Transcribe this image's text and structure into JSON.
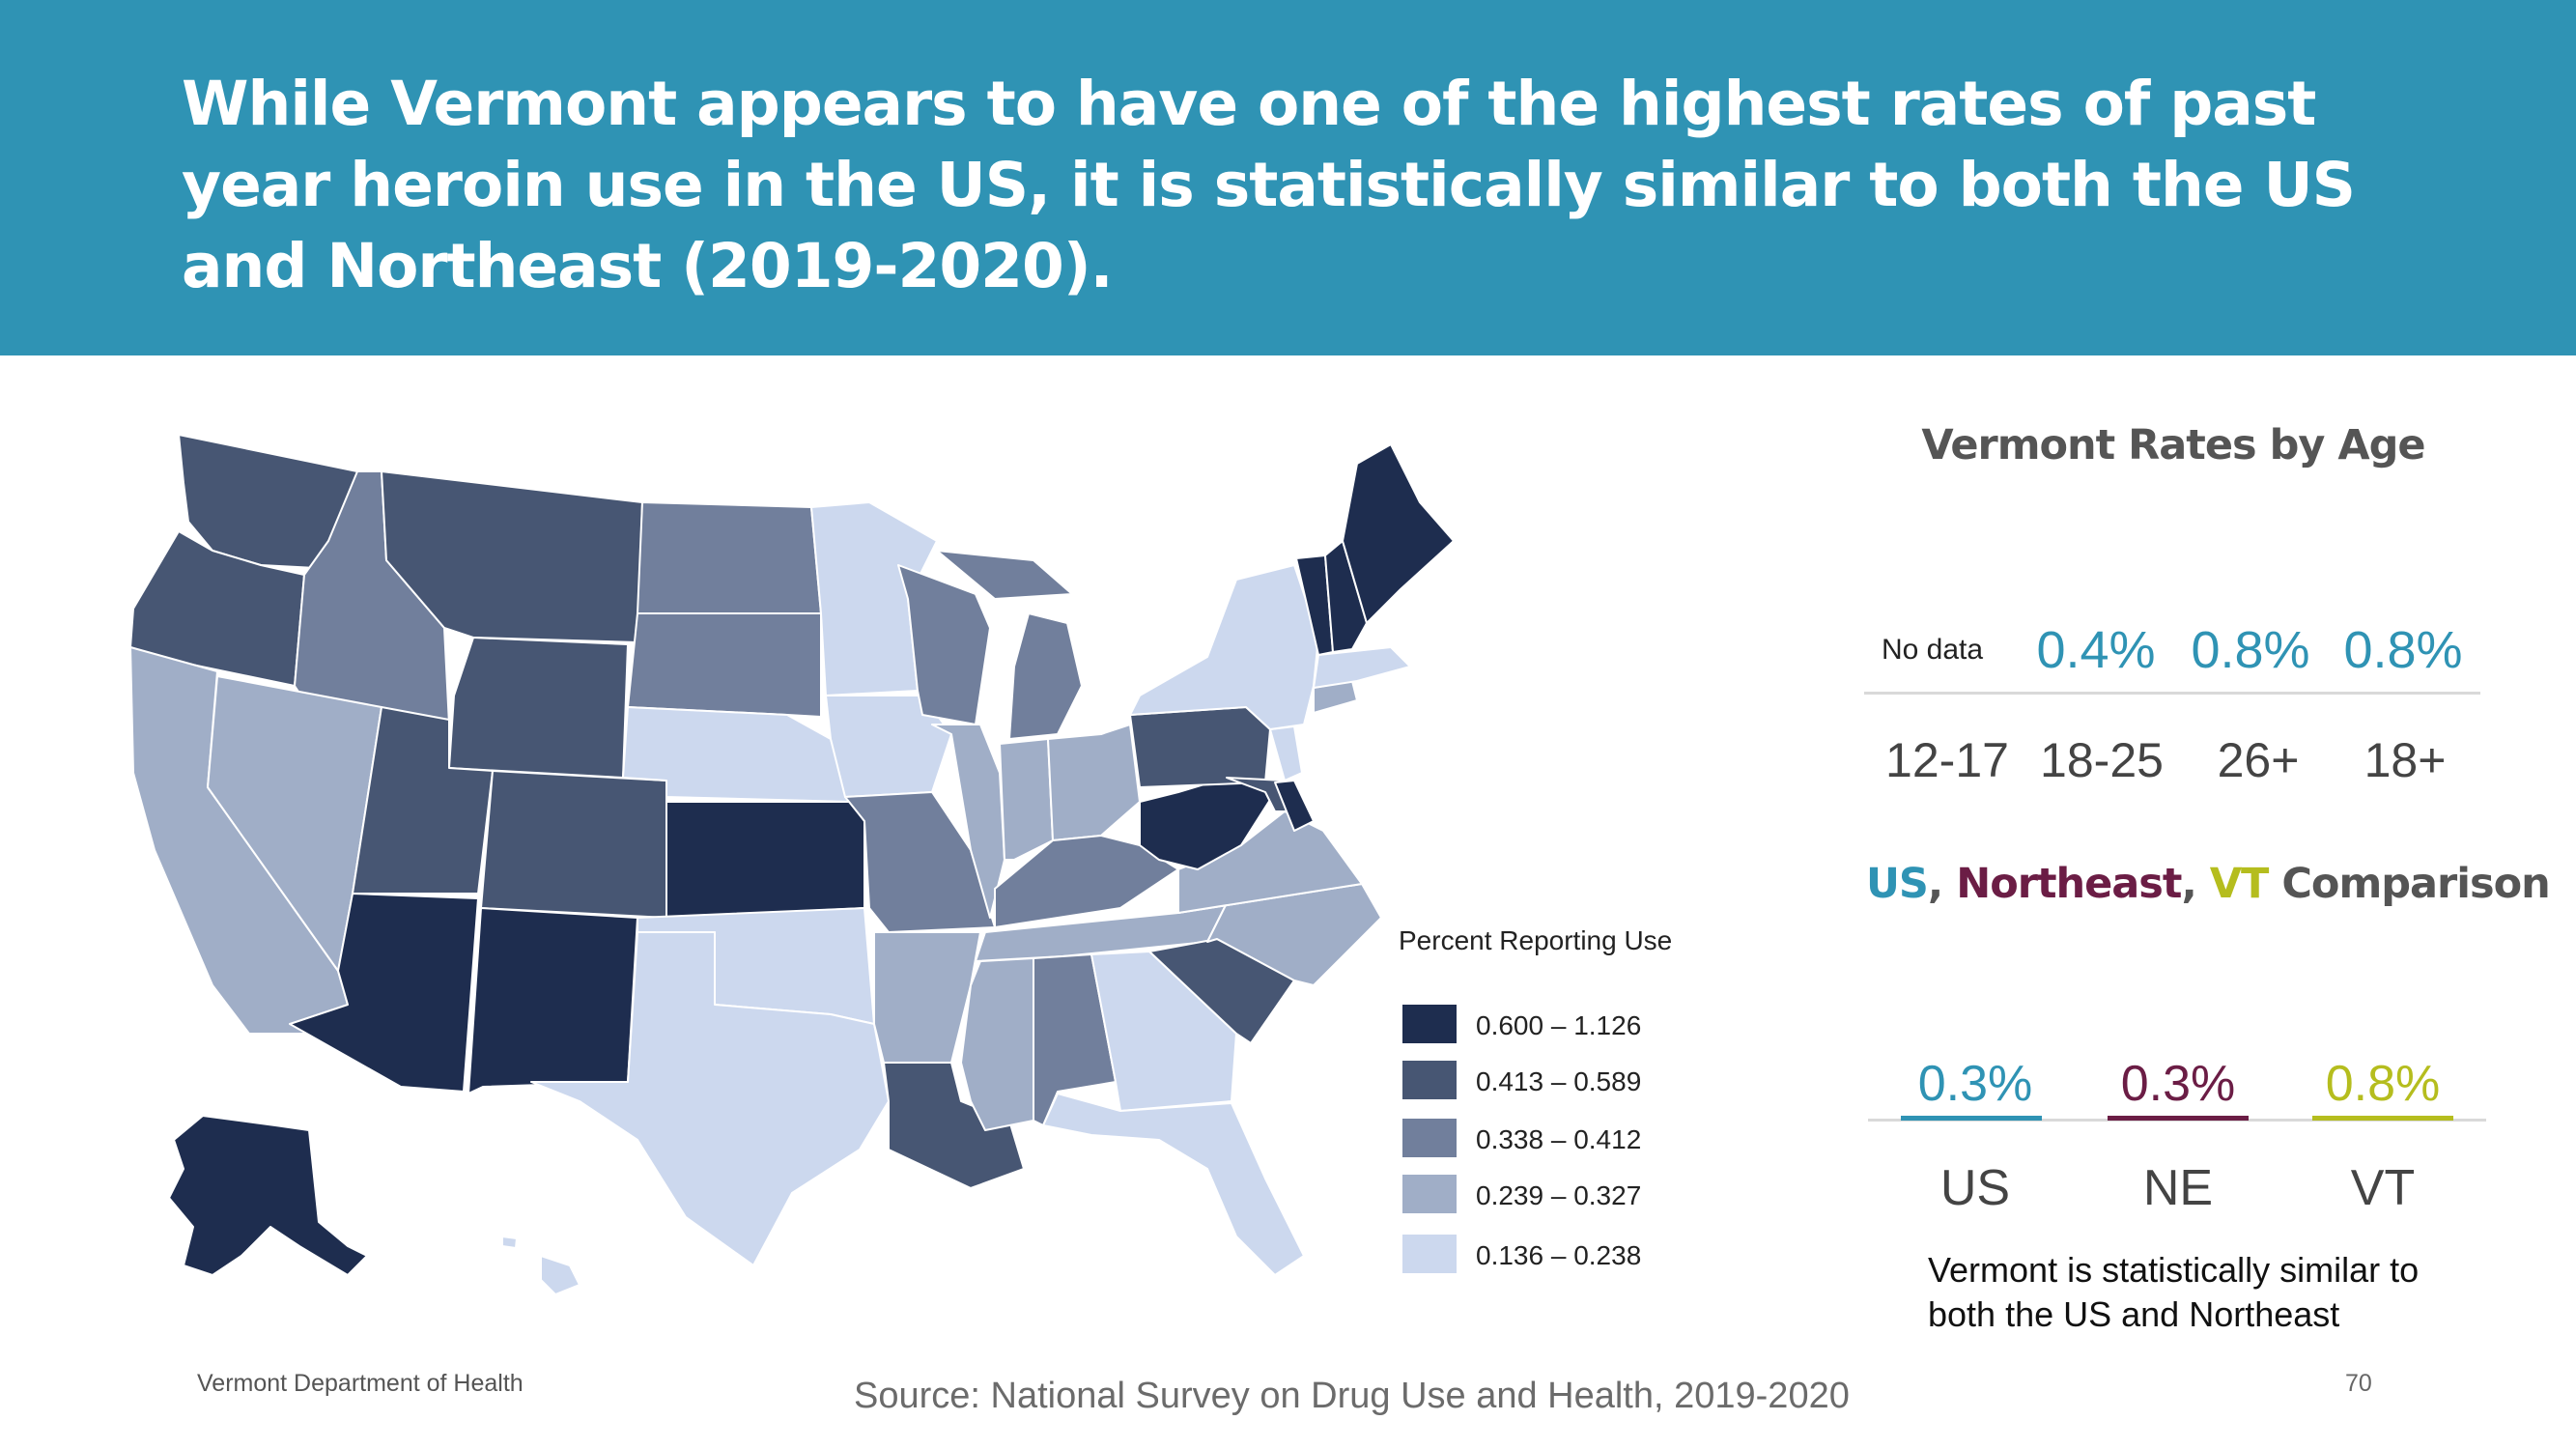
{
  "slide": {
    "title": "While Vermont appears to have one of the highest rates of past year heroin use in the US, it is statistically similar to both the US and Northeast (2019-2020).",
    "footer_left": "Vermont Department of Health",
    "source": "Source: National Survey on Drug Use and Health, 2019-2020",
    "page_number": "70"
  },
  "map": {
    "legend_title": "Percent Reporting  Use",
    "legend": [
      {
        "label": "0.600 – 1.126",
        "color": "#1e2d4f"
      },
      {
        "label": "0.413 – 0.589",
        "color": "#475673"
      },
      {
        "label": "0.338 – 0.412",
        "color": "#717f9c"
      },
      {
        "label": "0.239 – 0.327",
        "color": "#a0aec7"
      },
      {
        "label": "0.136 – 0.238",
        "color": "#ccd8ee"
      }
    ]
  },
  "age_panel": {
    "title": "Vermont Rates by Age",
    "no_data": "No data",
    "values": [
      "0.4%",
      "0.8%",
      "0.8%"
    ],
    "labels": [
      "12-17",
      "18-25",
      "26+",
      "18+"
    ]
  },
  "comparison": {
    "title_us": "US",
    "title_sep": ", ",
    "title_ne": "Northeast",
    "title_sep2": ", ",
    "title_vt": "VT",
    "title_rest": " Comparison",
    "values": [
      "0.3%",
      "0.3%",
      "0.8%"
    ],
    "labels": [
      "US",
      "NE",
      "VT"
    ],
    "colors": {
      "us": "#2f93b4",
      "ne": "#6b1d45",
      "vt": "#b5bd1e"
    },
    "note": "Vermont is statistically similar to both the US and Northeast"
  }
}
